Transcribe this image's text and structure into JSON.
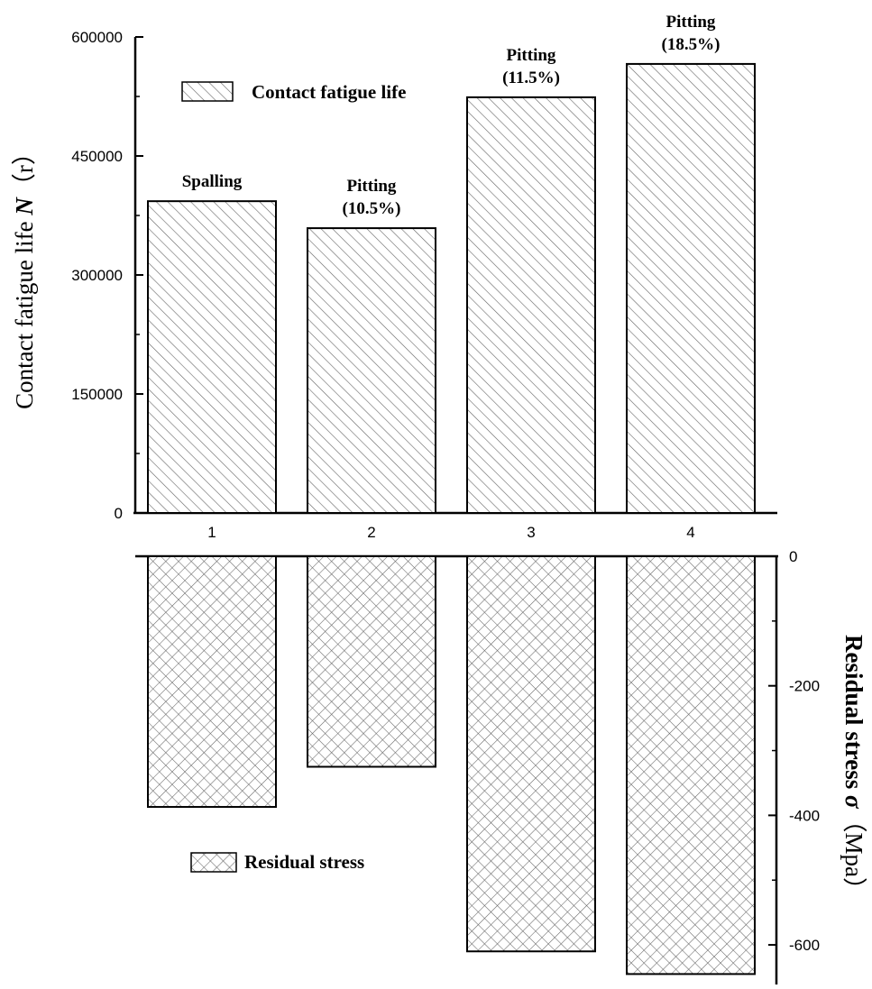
{
  "chart_data": [
    {
      "type": "bar",
      "categories": [
        "1",
        "2",
        "3",
        "4"
      ],
      "values": [
        393000,
        359000,
        524000,
        566000
      ],
      "ylim": [
        0,
        600000
      ],
      "yticks": [
        "0",
        "150000",
        "300000",
        "450000",
        "600000"
      ],
      "ylabel": {
        "prefix": "Contact fatigue life ",
        "symbol": "N",
        "unit": "（r）"
      },
      "legend": {
        "label": "Contact fatigue life",
        "position": "top-left",
        "pattern": "diagonal-hatch"
      },
      "annotations": [
        [
          "Spalling"
        ],
        [
          "Pitting",
          "(10.5%)"
        ],
        [
          "Pitting",
          "(11.5%)"
        ],
        [
          "Pitting",
          "(18.5%)"
        ]
      ]
    },
    {
      "type": "bar",
      "categories": [
        "1",
        "2",
        "3",
        "4"
      ],
      "values": [
        -387,
        -325,
        -610,
        -645
      ],
      "ylim": [
        -650,
        0
      ],
      "yticks": [
        "0",
        "-200",
        "-400",
        "-600"
      ],
      "ylabel": {
        "prefix": "Residual stress ",
        "symbol": "σ",
        "unit": "（Mpa）"
      },
      "yaxis_side": "right",
      "legend": {
        "label": "Residual stress",
        "position": "bottom-left",
        "pattern": "cross-hatch"
      }
    }
  ]
}
